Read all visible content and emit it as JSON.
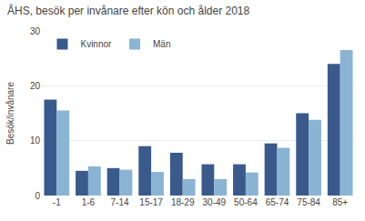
{
  "chart_data": {
    "type": "bar",
    "title": "ÅHS, besök per invånare efter kön och ålder 2018",
    "ylabel": "Besök/invånare",
    "categories": [
      "-1",
      "1-6",
      "7-14",
      "15-17",
      "18-29",
      "30-49",
      "50-64",
      "65-74",
      "75-84",
      "85+"
    ],
    "series": [
      {
        "name": "Kvinnor",
        "color": "#3a5a8c",
        "values": [
          17.5,
          4.5,
          5.0,
          9.0,
          7.8,
          5.7,
          5.7,
          9.5,
          15.0,
          24.0
        ]
      },
      {
        "name": "Män",
        "color": "#8ab4d4",
        "values": [
          15.5,
          5.3,
          4.7,
          4.3,
          3.0,
          3.0,
          4.2,
          8.7,
          13.8,
          26.5
        ]
      }
    ],
    "ylim": [
      0,
      30
    ],
    "yticks": [
      0,
      10,
      20,
      30
    ],
    "grid": true,
    "legend": "upper left"
  }
}
